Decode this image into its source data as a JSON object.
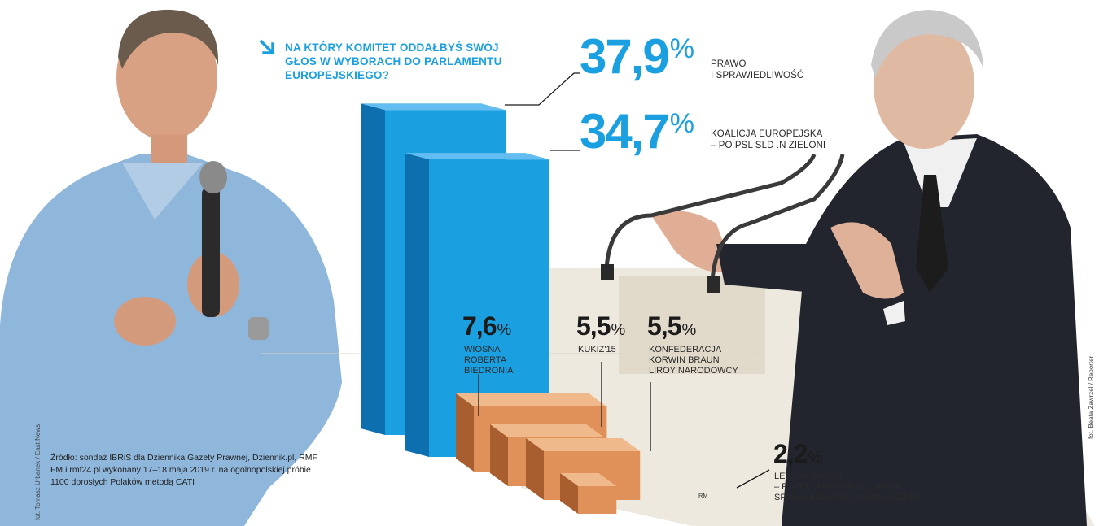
{
  "question": "NA KTÓRY KOMITET ODDAŁBYŚ SWÓJ GŁOS W WYBORACH DO PARLAMENTU EUROPEJSKIEGO?",
  "source": "Źródło: sondaż IBRiS dla Dziennika Gazety Prawnej, Dziennik.pl, RMF FM i rmf24.pl wykonany 17–18 maja 2019 r. na ogólnopolskiej próbie 1100 dorosłych Polaków metodą CATI",
  "credits": {
    "left": "fot. Tomasz Urbanek / East News",
    "right": "fot. Beata Zawrzel / Reporter"
  },
  "signature": "RM",
  "chart_data": {
    "type": "bar",
    "title": "NA KTÓRY KOMITET ODDAŁBYŚ SWÓJ GŁOS W WYBORACH DO PARLAMENTU EUROPEJSKIEGO?",
    "unit": "%",
    "ylim": [
      0,
      40
    ],
    "categories": [
      "PRAWO I SPRAWIEDLIWOŚĆ",
      "KOALICJA EUROPEJSKA – PO PSL SLD .N ZIELONI",
      "WIOSNA ROBERTA BIEDRONIA",
      "KUKIZ'15",
      "KONFEDERACJA KORWIN BRAUN LIROY NARODOWCY",
      "LEWICA RAZEM – RAZEM, UNIA PRACY, RUCH SPRAWIEDLIWOŚCI SPOŁECZNEJ"
    ],
    "values": [
      37.9,
      34.7,
      7.6,
      5.5,
      5.5,
      2.2
    ],
    "value_labels": [
      "37,9",
      "34,7",
      "7,6",
      "5,5",
      "5,5",
      "2,2"
    ],
    "pct_sign": "%",
    "label_lines": [
      [
        "PRAWO",
        "I SPRAWIEDLIWOŚĆ"
      ],
      [
        "KOALICJA EUROPEJSKA",
        "– PO PSL SLD .N ZIELONI"
      ],
      [
        "WIOSNA",
        "ROBERTA",
        "BIEDRONIA"
      ],
      [
        "KUKIZ'15"
      ],
      [
        "KONFEDERACJA",
        "KORWIN BRAUN",
        "LIROY NARODOWCY"
      ],
      [
        "LEWICA RAZEM",
        "– RAZEM, UNIA PRACY, RUCH",
        "SPRAWIEDLIWOŚCI SPOŁECZNEJ"
      ]
    ],
    "colors": {
      "major_front": "#1a9fe0",
      "major_side": "#0d6fae",
      "major_top": "#63bdf0",
      "minor_front": "#e0915a",
      "minor_side": "#a95e30",
      "minor_top": "#f0b98c",
      "text_accent": "#1a9fe0"
    }
  }
}
